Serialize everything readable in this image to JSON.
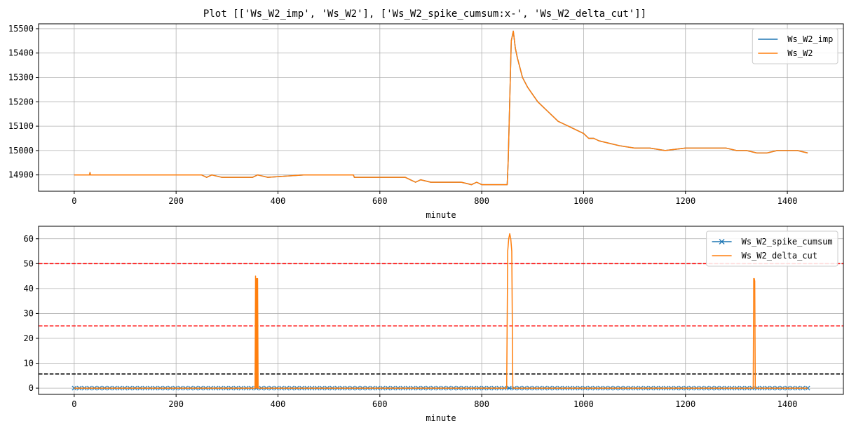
{
  "figure": {
    "title": "Plot [['Ws_W2_imp', 'Ws_W2'], ['Ws_W2_spike_cumsum:x-', 'Ws_W2_delta_cut']]"
  },
  "colors": {
    "blue": "#1f77b4",
    "orange": "#ff7f0e",
    "red": "#ff0000",
    "black": "#000000",
    "grid": "#b0b0b0"
  },
  "chart_data": [
    {
      "type": "line",
      "xlabel": "minute",
      "ylabel": "",
      "xlim": [
        -70,
        1510
      ],
      "ylim": [
        14833,
        15520
      ],
      "xticks": [
        0,
        200,
        400,
        600,
        800,
        1000,
        1200,
        1400
      ],
      "yticks": [
        14900,
        15000,
        15100,
        15200,
        15300,
        15400,
        15500
      ],
      "grid": true,
      "legend_position": "top-right",
      "series": [
        {
          "name": "Ws_W2_imp",
          "color": "#1f77b4",
          "marker": "",
          "x": [
            0,
            30,
            31,
            32,
            250,
            260,
            270,
            290,
            350,
            360,
            380,
            450,
            548,
            550,
            650,
            660,
            670,
            680,
            700,
            760,
            780,
            790,
            800,
            850,
            852,
            858,
            862,
            866,
            870,
            875,
            880,
            890,
            900,
            910,
            920,
            930,
            940,
            950,
            960,
            970,
            980,
            990,
            1000,
            1010,
            1020,
            1030,
            1050,
            1070,
            1100,
            1130,
            1160,
            1200,
            1240,
            1280,
            1300,
            1320,
            1340,
            1360,
            1380,
            1400,
            1420,
            1440
          ],
          "y": [
            14900,
            14900,
            14910,
            14900,
            14900,
            14890,
            14900,
            14890,
            14890,
            14900,
            14890,
            14900,
            14900,
            14890,
            14890,
            14880,
            14870,
            14880,
            14870,
            14870,
            14860,
            14870,
            14860,
            14860,
            14960,
            15450,
            15490,
            15420,
            15380,
            15340,
            15300,
            15260,
            15230,
            15200,
            15180,
            15160,
            15140,
            15120,
            15110,
            15100,
            15090,
            15080,
            15070,
            15050,
            15050,
            15040,
            15030,
            15020,
            15010,
            15010,
            15000,
            15010,
            15010,
            15010,
            15000,
            15000,
            14990,
            14990,
            15000,
            15000,
            15000,
            14990
          ]
        },
        {
          "name": "Ws_W2",
          "color": "#ff7f0e",
          "marker": "",
          "x": [
            0,
            30,
            31,
            32,
            250,
            260,
            270,
            290,
            350,
            360,
            380,
            450,
            548,
            550,
            650,
            660,
            670,
            680,
            700,
            760,
            780,
            790,
            800,
            850,
            852,
            858,
            862,
            866,
            870,
            875,
            880,
            890,
            900,
            910,
            920,
            930,
            940,
            950,
            960,
            970,
            980,
            990,
            1000,
            1010,
            1020,
            1030,
            1050,
            1070,
            1100,
            1130,
            1160,
            1200,
            1240,
            1280,
            1300,
            1320,
            1340,
            1360,
            1380,
            1400,
            1420,
            1440
          ],
          "y": [
            14900,
            14900,
            14910,
            14900,
            14900,
            14890,
            14900,
            14890,
            14890,
            14900,
            14890,
            14900,
            14900,
            14890,
            14890,
            14880,
            14870,
            14880,
            14870,
            14870,
            14860,
            14870,
            14860,
            14860,
            14960,
            15450,
            15490,
            15420,
            15380,
            15340,
            15300,
            15260,
            15230,
            15200,
            15180,
            15160,
            15140,
            15120,
            15110,
            15100,
            15090,
            15080,
            15070,
            15050,
            15050,
            15040,
            15030,
            15020,
            15010,
            15010,
            15000,
            15010,
            15010,
            15010,
            15000,
            15000,
            14990,
            14990,
            15000,
            15000,
            15000,
            14990
          ]
        }
      ]
    },
    {
      "type": "line",
      "xlabel": "minute",
      "ylabel": "",
      "xlim": [
        -70,
        1510
      ],
      "ylim": [
        -2.5,
        65
      ],
      "xticks": [
        0,
        200,
        400,
        600,
        800,
        1000,
        1200,
        1400
      ],
      "yticks": [
        0,
        10,
        20,
        30,
        40,
        50,
        60
      ],
      "grid": true,
      "legend_position": "top-right",
      "hlines": [
        {
          "y": 50,
          "color": "#ff0000",
          "style": "dashed"
        },
        {
          "y": 25,
          "color": "#ff0000",
          "style": "dashed"
        },
        {
          "y": 5.7,
          "color": "#000000",
          "style": "dashed"
        }
      ],
      "series": [
        {
          "name": "Ws_W2_spike_cumsum",
          "color": "#1f77b4",
          "marker": "x",
          "x": [
            0,
            1440
          ],
          "y": [
            0,
            0
          ]
        },
        {
          "name": "Ws_W2_delta_cut",
          "color": "#ff7f0e",
          "marker": "",
          "x": [
            0,
            355,
            356,
            357,
            358,
            359,
            360,
            361,
            362,
            849,
            851,
            853,
            855,
            857,
            859,
            861,
            863,
            1333,
            1334,
            1335,
            1336,
            1337,
            1440
          ],
          "y": [
            0,
            0,
            45,
            0,
            44,
            0,
            44,
            0,
            0,
            0,
            55,
            60,
            62,
            60,
            55,
            0,
            0,
            0,
            44,
            44,
            43,
            0,
            0
          ]
        }
      ]
    }
  ]
}
